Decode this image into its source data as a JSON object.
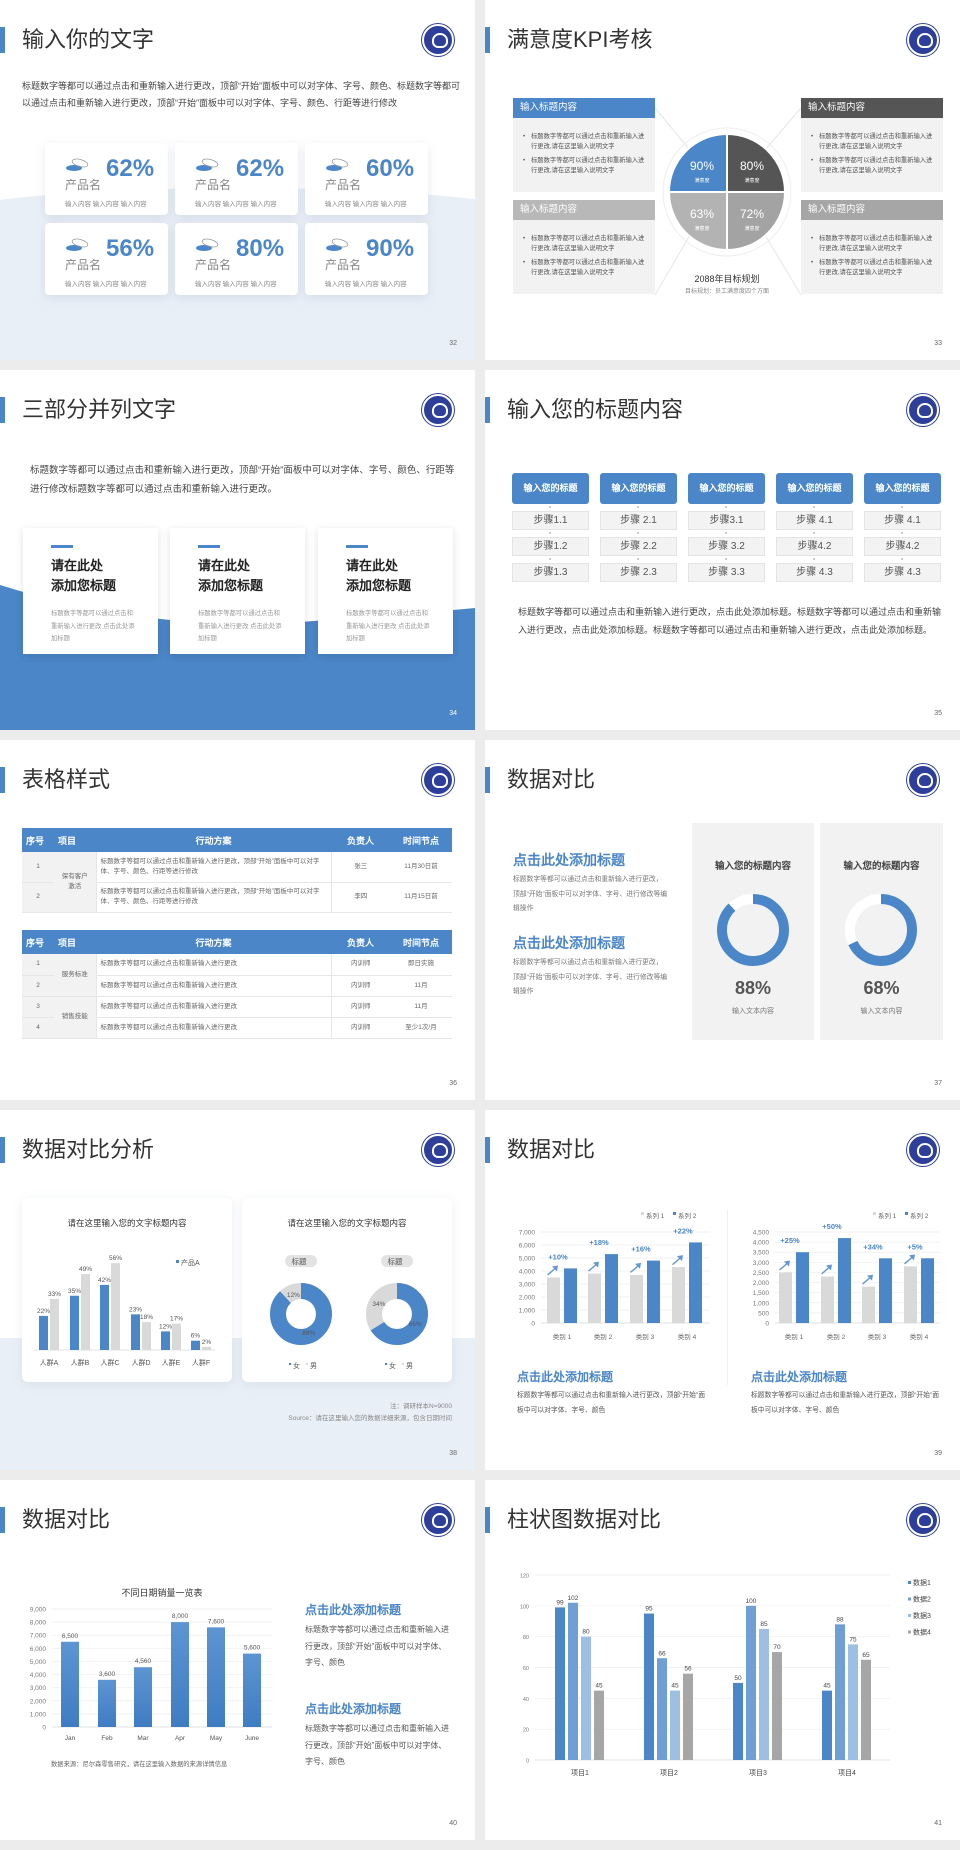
{
  "colors": {
    "accent": "#4a86c8",
    "dark_gray": "#555555",
    "gray": "#a6a6a6",
    "light_gray": "#d9d9d9",
    "logo": "#2d3f9a"
  },
  "logo_icon": "school-seal-logo",
  "slides": [
    {
      "title": "输入你的文字",
      "page": "32",
      "paragraph": "标题数字等都可以通过点击和重新输入进行更改，顶部“开始”面板中可以对字体、字号、颜色、标题数字等都可以通过点击和重新输入进行更改，顶部“开始”面板中可以对字体、字号、颜色、行距等进行修改",
      "cards": [
        {
          "name": "产品名",
          "percent": "62%",
          "sub": "输入内容  输入内容  输入内容"
        },
        {
          "name": "产品名",
          "percent": "62%",
          "sub": "输入内容  输入内容  输入内容"
        },
        {
          "name": "产品名",
          "percent": "60%",
          "sub": "输入内容  输入内容  输入内容"
        },
        {
          "name": "产品名",
          "percent": "56%",
          "sub": "输入内容  输入内容  输入内容"
        },
        {
          "name": "产品名",
          "percent": "80%",
          "sub": "输入内容  输入内容  输入内容"
        },
        {
          "name": "产品名",
          "percent": "90%",
          "sub": "输入内容  输入内容  输入内容"
        }
      ]
    },
    {
      "title": "满意度KPI考核",
      "page": "33",
      "boxes": [
        {
          "header": "输入标题内容",
          "color": "#4a86c8",
          "bullets": [
            "标题数字等都可以通过点击和重新输入进行更改,请在这里输入说明文字",
            "标题数字等都可以通过点击和重新输入进行更改,请在这里输入说明文字"
          ]
        },
        {
          "header": "输入标题内容",
          "color": "#555555",
          "bullets": [
            "标题数字等都可以通过点击和重新输入进行更改,请在这里输入说明文字",
            "标题数字等都可以通过点击和重新输入进行更改,请在这里输入说明文字"
          ]
        },
        {
          "header": "输入标题内容",
          "color": "#b8b8b8",
          "bullets": [
            "标题数字等都可以通过点击和重新输入进行更改,请在这里输入说明文字",
            "标题数字等都可以通过点击和重新输入进行更改,请在这里输入说明文字"
          ]
        },
        {
          "header": "输入标题内容",
          "color": "#a6a6a6",
          "bullets": [
            "标题数字等都可以通过点击和重新输入进行更改,请在这里输入说明文字",
            "标题数字等都可以通过点击和重新输入进行更改,请在这里输入说明文字"
          ]
        }
      ],
      "quadrants": [
        {
          "value": "90%",
          "label": "满意度",
          "color": "#4a86c8"
        },
        {
          "value": "80%",
          "label": "满意度",
          "color": "#555555"
        },
        {
          "value": "63%",
          "label": "满意度",
          "color": "#b3b3b3"
        },
        {
          "value": "72%",
          "label": "满意度",
          "color": "#a3a3a3"
        }
      ],
      "plan_title": "2088年目标规划",
      "plan_sub": "目标规划：员工满意度四个方面"
    },
    {
      "title": "三部分并列文字",
      "page": "34",
      "paragraph": "标题数字等都可以通过点击和重新输入进行更改，顶部“开始”面板中可以对字体、字号、颜色、行距等进行修改标题数字等都可以通过点击和重新输入进行更改。",
      "cards": [
        {
          "title": "请在此处\n添加您标题",
          "text": "标题数字等都可以通过点击和重新输入进行更改 点击此处添加标题"
        },
        {
          "title": "请在此处\n添加您标题",
          "text": "标题数字等都可以通过点击和重新输入进行更改 点击此处添加标题"
        },
        {
          "title": "请在此处\n添加您标题",
          "text": "标题数字等都可以通过点击和重新输入进行更改 点击此处添加标题"
        }
      ]
    },
    {
      "title": "输入您的标题内容",
      "page": "35",
      "columns": [
        {
          "header": "输入您的标题",
          "steps": [
            "步骤1.1",
            "步骤1.2",
            "步骤1.3"
          ]
        },
        {
          "header": "输入您的标题",
          "steps": [
            "步骤 2.1",
            "步骤 2.2",
            "步骤 2.3"
          ]
        },
        {
          "header": "输入您的标题",
          "steps": [
            "步骤3.1",
            "步骤 3.2",
            "步骤 3.3"
          ]
        },
        {
          "header": "输入您的标题",
          "steps": [
            "步骤 4.1",
            "步骤4.2",
            "步骤 4.3"
          ]
        },
        {
          "header": "输入您的标题",
          "steps": [
            "步骤 4.1",
            "步骤4.2",
            "步骤 4.3"
          ]
        }
      ],
      "paragraph": "标题数字等都可以通过点击和重新输入进行更改，点击此处添加标题。标题数字等都可以通过点击和重新输入进行更改，点击此处添加标题。标题数字等都可以通过点击和重新输入进行更改，点击此处添加标题。"
    },
    {
      "title": "表格样式",
      "page": "36",
      "headers": [
        "序号",
        "项目",
        "行动方案",
        "负责人",
        "时间节点"
      ],
      "table1": {
        "groups": [
          {
            "project": "保有客户激活",
            "rows": [
              {
                "no": "1",
                "plan": "标题数字等都可以通过点击和重新输入进行更改，顶部“开始”面板中可以对字体、字号、颜色、行距等进行修改",
                "owner": "张三",
                "time": "11月30日前"
              },
              {
                "no": "2",
                "plan": "标题数字等都可以通过点击和重新输入进行更改，顶部“开始”面板中可以对字体、字号、颜色、行距等进行修改",
                "owner": "李四",
                "time": "11月15日前"
              }
            ]
          }
        ]
      },
      "table2": {
        "groups": [
          {
            "project": "服务标准",
            "rows": [
              {
                "no": "1",
                "plan": "标题数字等都可以通过点击和重新输入进行更改",
                "owner": "内训师",
                "time": "即日实施"
              },
              {
                "no": "2",
                "plan": "标题数字等都可以通过点击和重新输入进行更改",
                "owner": "内训师",
                "time": "11月"
              }
            ]
          },
          {
            "project": "销售技能",
            "rows": [
              {
                "no": "3",
                "plan": "标题数字等都可以通过点击和重新输入进行更改",
                "owner": "内训师",
                "time": "11月"
              },
              {
                "no": "4",
                "plan": "标题数字等都可以通过点击和重新输入进行更改",
                "owner": "内训师",
                "time": "至少1次/月"
              }
            ]
          }
        ]
      }
    },
    {
      "title": "数据对比",
      "page": "37",
      "blocks": [
        {
          "heading": "点击此处添加标题",
          "text": "标题数字等都可以通过点击和重新输入进行更改，顶部“开始”面板中可以对字体、字号、进行修改等编辑操作"
        },
        {
          "heading": "点击此处添加标题",
          "text": "标题数字等都可以通过点击和重新输入进行更改，顶部“开始”面板中可以对字体、字号、进行修改等编辑操作"
        }
      ],
      "panels": [
        {
          "title": "输入您的标题内容",
          "percent": "88%",
          "value": 88,
          "label": "输入文本内容"
        },
        {
          "title": "输入您的标题内容",
          "percent": "68%",
          "value": 68,
          "label": "输入文本内容"
        }
      ]
    },
    {
      "title": "数据对比分析",
      "page": "38",
      "note": "注：调研样本N=9000",
      "source": "Source：请在这里输入您的数据详细来源，包含日期时间"
    },
    {
      "title": "数据对比",
      "page": "39",
      "blocks": [
        {
          "heading": "点击此处添加标题",
          "text": "标题数字等都可以通过点击和重新输入进行更改，顶部“开始”面板中可以对字体、字号、颜色"
        },
        {
          "heading": "点击此处添加标题",
          "text": "标题数字等都可以通过点击和重新输入进行更改，顶部“开始”面板中可以对字体、字号、颜色"
        }
      ]
    },
    {
      "title": "数据对比",
      "page": "40",
      "blocks": [
        {
          "heading": "点击此处添加标题",
          "text": "标题数字等都可以通过点击和重新输入进行更改，顶部“开始”面板中可以对字体、字号、颜色"
        },
        {
          "heading": "点击此处添加标题",
          "text": "标题数字等都可以通过点击和重新输入进行更改，顶部“开始”面板中可以对字体、字号、颜色"
        }
      ]
    },
    {
      "title": "柱状图数据对比",
      "page": "41"
    }
  ],
  "chart_data": [
    {
      "type": "bar",
      "title": "请在这里输入您的文字标题内容",
      "categories": [
        "人群A",
        "人群B",
        "人群C",
        "人群D",
        "人群E",
        "人群F"
      ],
      "series": [
        {
          "name": "产品A",
          "color": "#4a86c8",
          "values": [
            22,
            35,
            42,
            23,
            12,
            6
          ]
        },
        {
          "color": "#d9d9d9",
          "values": [
            33,
            49,
            56,
            18,
            17,
            2
          ]
        }
      ],
      "value_suffix": "%",
      "legend": "top-right",
      "ylim": [
        0,
        60
      ]
    },
    {
      "type": "pie",
      "title": "请在这里输入您的文字标题内容",
      "legend_entries": [
        "女",
        "男"
      ],
      "colors": [
        "#4a86c8",
        "#d9d9d9"
      ],
      "charts": [
        {
          "label": "标题",
          "values": [
            88,
            12
          ]
        },
        {
          "label": "标题",
          "values": [
            66,
            34
          ]
        }
      ]
    },
    {
      "type": "bar",
      "categories": [
        "类别 1",
        "类别 2",
        "类别 3",
        "类别 4"
      ],
      "series": [
        {
          "name": "系列 1",
          "color": "#d9d9d9",
          "values": [
            3500,
            3800,
            3700,
            4300
          ]
        },
        {
          "name": "系列 2",
          "color": "#4a86c8",
          "values": [
            4200,
            5300,
            4800,
            6200
          ]
        }
      ],
      "annotations": [
        "+10%",
        "+18%",
        "+16%",
        "+22%"
      ],
      "ylim": [
        0,
        7000
      ],
      "yticks": [
        "0",
        "1,000",
        "2,000",
        "3,000",
        "4,000",
        "5,000",
        "6,000",
        "7,000"
      ],
      "legend": "top-right",
      "grid": true
    },
    {
      "type": "bar",
      "categories": [
        "类别 1",
        "类别 2",
        "类别 3",
        "类别 4"
      ],
      "series": [
        {
          "name": "系列 1",
          "color": "#d9d9d9",
          "values": [
            2500,
            2300,
            1800,
            2800
          ]
        },
        {
          "name": "系列 2",
          "color": "#4a86c8",
          "values": [
            3500,
            4200,
            3200,
            3200
          ]
        }
      ],
      "annotations": [
        "+25%",
        "+50%",
        "+34%",
        "+5%"
      ],
      "ylim": [
        0,
        4500
      ],
      "yticks": [
        "0",
        "500",
        "1,000",
        "1,500",
        "2,000",
        "2,500",
        "3,000",
        "3,500",
        "4,000",
        "4,500"
      ],
      "legend": "top-right",
      "grid": true
    },
    {
      "type": "bar",
      "title": "不同日期销量一览表",
      "categories": [
        "Jan",
        "Feb",
        "Mar",
        "Apr",
        "May",
        "June"
      ],
      "series": [
        {
          "color": "#4a86c8",
          "values": [
            6500,
            3600,
            4560,
            8000,
            7600,
            5600
          ]
        }
      ],
      "data_labels": [
        "6,500",
        "3,600",
        "4,560",
        "8,000",
        "7,600",
        "5,600"
      ],
      "ylim": [
        0,
        9000
      ],
      "yticks": [
        "0",
        "1,000",
        "2,000",
        "3,000",
        "4,000",
        "5,000",
        "6,000",
        "7,000",
        "8,000",
        "9,000"
      ],
      "grid": true,
      "source": "数据来源：尼尔森零售研究，请在这里输入数据的来源详情信息"
    },
    {
      "type": "bar",
      "categories": [
        "项目1",
        "项目2",
        "项目3",
        "项目4"
      ],
      "series": [
        {
          "name": "数据1",
          "color": "#4a86c8",
          "values": [
            99,
            95,
            50,
            45
          ]
        },
        {
          "name": "数据2",
          "color": "#6f9fd4",
          "values": [
            102,
            66,
            100,
            88
          ]
        },
        {
          "name": "数据3",
          "color": "#9dbfe3",
          "values": [
            80,
            45,
            85,
            75
          ]
        },
        {
          "name": "数据4",
          "color": "#a6a6a6",
          "values": [
            45,
            56,
            70,
            65
          ]
        }
      ],
      "ylim": [
        0,
        120
      ],
      "yticks": [
        "0",
        "20",
        "40",
        "60",
        "80",
        "100",
        "120"
      ],
      "legend": "right",
      "grid": true
    }
  ]
}
